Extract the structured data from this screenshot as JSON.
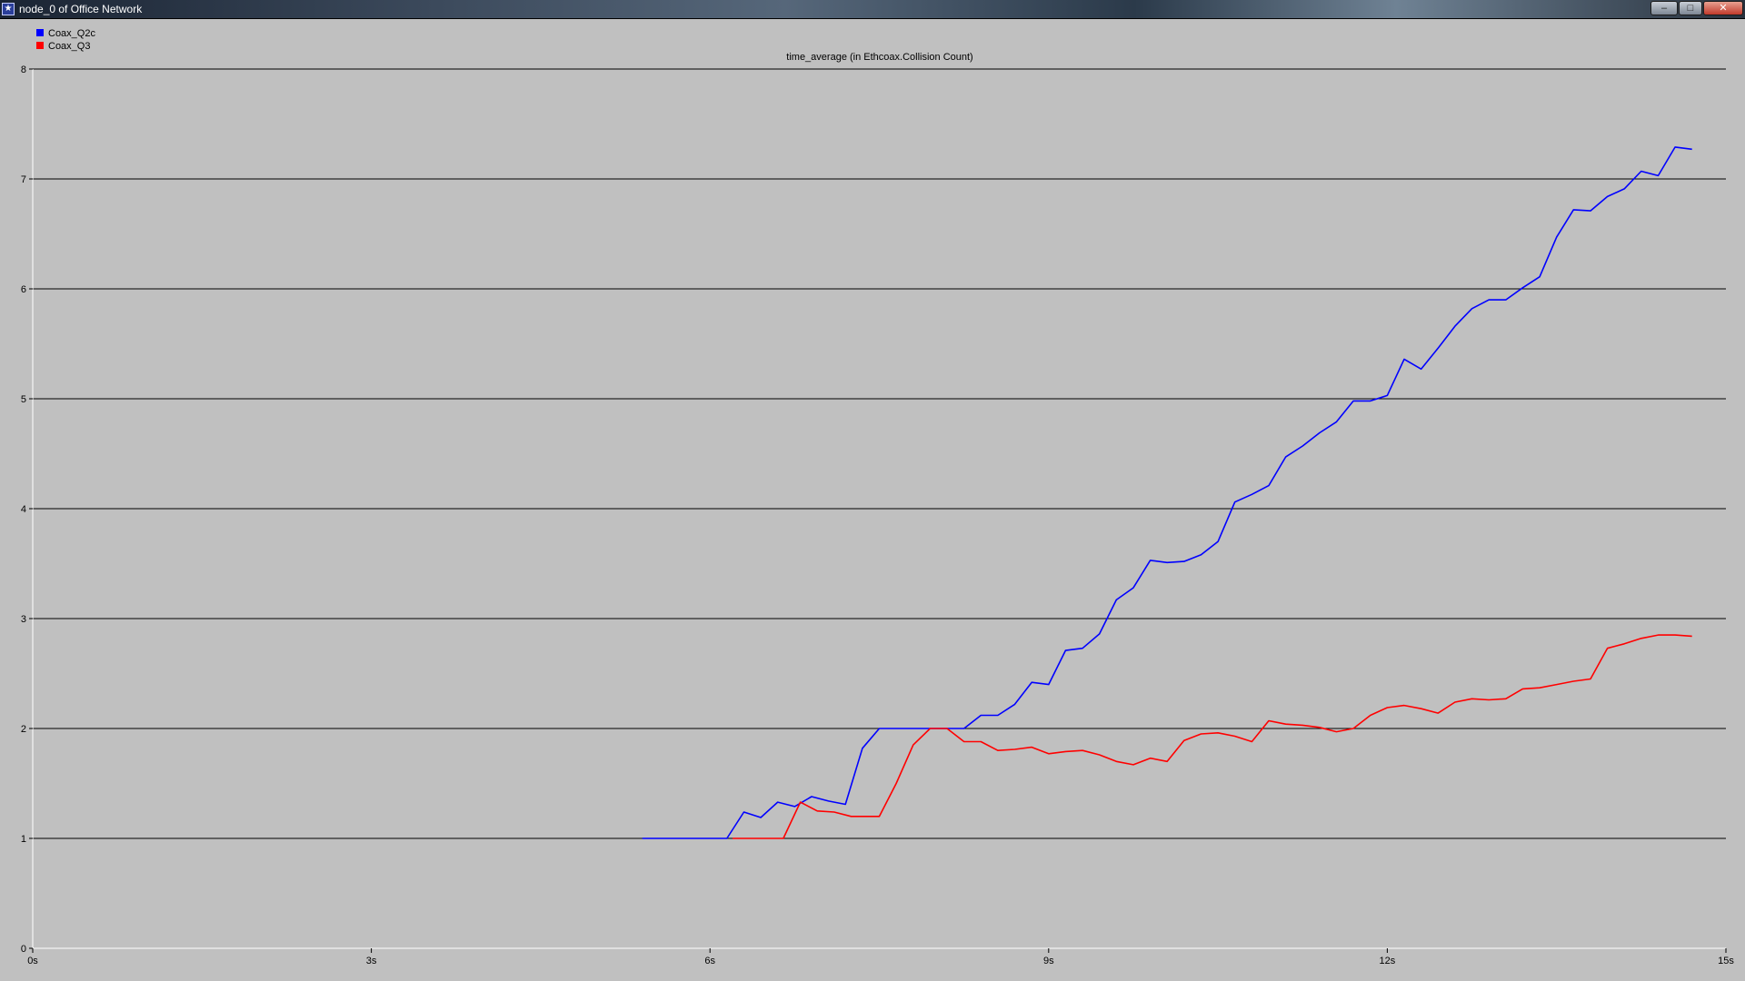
{
  "window": {
    "title": "node_0 of Office Network",
    "app_icon": "star-icon",
    "buttons": {
      "minimize": "–",
      "maximize": "□",
      "close": "✕"
    }
  },
  "legend": [
    {
      "label": "Coax_Q2c",
      "color": "#0000ff"
    },
    {
      "label": "Coax_Q3",
      "color": "#ff0000"
    }
  ],
  "chart_data": {
    "type": "line",
    "title": "time_average (in Ethcoax.Collision Count)",
    "xlabel": "",
    "ylabel": "",
    "xlim": [
      0,
      15
    ],
    "ylim": [
      0,
      8
    ],
    "x_ticks": [
      {
        "value": 0,
        "label": "0s"
      },
      {
        "value": 3,
        "label": "3s"
      },
      {
        "value": 6,
        "label": "6s"
      },
      {
        "value": 9,
        "label": "9s"
      },
      {
        "value": 12,
        "label": "12s"
      },
      {
        "value": 15,
        "label": "15s"
      }
    ],
    "y_ticks": [
      {
        "value": 0,
        "label": "0"
      },
      {
        "value": 1,
        "label": "1"
      },
      {
        "value": 2,
        "label": "2"
      },
      {
        "value": 3,
        "label": "3"
      },
      {
        "value": 4,
        "label": "4"
      },
      {
        "value": 5,
        "label": "5"
      },
      {
        "value": 6,
        "label": "6"
      },
      {
        "value": 7,
        "label": "7"
      },
      {
        "value": 8,
        "label": "8"
      }
    ],
    "grid": true,
    "legend_position": "top-left",
    "background": "#c0c0c0",
    "series": [
      {
        "name": "Coax_Q2c",
        "color": "#0000ff",
        "points": [
          [
            5.4,
            1.0
          ],
          [
            6.15,
            1.0
          ],
          [
            6.3,
            1.24
          ],
          [
            6.45,
            1.19
          ],
          [
            6.6,
            1.33
          ],
          [
            6.75,
            1.29
          ],
          [
            6.9,
            1.38
          ],
          [
            7.05,
            1.34
          ],
          [
            7.2,
            1.31
          ],
          [
            7.35,
            1.82
          ],
          [
            7.5,
            2.0
          ],
          [
            8.1,
            2.0
          ],
          [
            8.25,
            2.0
          ],
          [
            8.4,
            2.12
          ],
          [
            8.55,
            2.12
          ],
          [
            8.7,
            2.22
          ],
          [
            8.85,
            2.42
          ],
          [
            9.0,
            2.4
          ],
          [
            9.15,
            2.71
          ],
          [
            9.3,
            2.73
          ],
          [
            9.45,
            2.86
          ],
          [
            9.6,
            3.17
          ],
          [
            9.75,
            3.28
          ],
          [
            9.9,
            3.53
          ],
          [
            10.05,
            3.51
          ],
          [
            10.2,
            3.52
          ],
          [
            10.35,
            3.58
          ],
          [
            10.5,
            3.7
          ],
          [
            10.65,
            4.06
          ],
          [
            10.8,
            4.13
          ],
          [
            10.95,
            4.21
          ],
          [
            11.1,
            4.47
          ],
          [
            11.25,
            4.57
          ],
          [
            11.4,
            4.69
          ],
          [
            11.55,
            4.79
          ],
          [
            11.7,
            4.98
          ],
          [
            11.85,
            4.98
          ],
          [
            12.0,
            5.03
          ],
          [
            12.15,
            5.36
          ],
          [
            12.3,
            5.27
          ],
          [
            12.45,
            5.46
          ],
          [
            12.6,
            5.66
          ],
          [
            12.75,
            5.82
          ],
          [
            12.9,
            5.9
          ],
          [
            13.05,
            5.9
          ],
          [
            13.2,
            6.01
          ],
          [
            13.35,
            6.11
          ],
          [
            13.5,
            6.47
          ],
          [
            13.65,
            6.72
          ],
          [
            13.8,
            6.71
          ],
          [
            13.95,
            6.84
          ],
          [
            14.1,
            6.91
          ],
          [
            14.25,
            7.07
          ],
          [
            14.4,
            7.03
          ],
          [
            14.55,
            7.29
          ],
          [
            14.7,
            7.27
          ]
        ]
      },
      {
        "name": "Coax_Q3",
        "color": "#ff0000",
        "points": [
          [
            6.2,
            1.0
          ],
          [
            6.65,
            1.0
          ],
          [
            6.8,
            1.33
          ],
          [
            6.95,
            1.25
          ],
          [
            7.1,
            1.24
          ],
          [
            7.25,
            1.2
          ],
          [
            7.5,
            1.2
          ],
          [
            7.65,
            1.5
          ],
          [
            7.8,
            1.85
          ],
          [
            7.95,
            2.0
          ],
          [
            8.1,
            2.0
          ],
          [
            8.25,
            1.88
          ],
          [
            8.4,
            1.88
          ],
          [
            8.55,
            1.8
          ],
          [
            8.7,
            1.81
          ],
          [
            8.85,
            1.83
          ],
          [
            9.0,
            1.77
          ],
          [
            9.15,
            1.79
          ],
          [
            9.3,
            1.8
          ],
          [
            9.45,
            1.76
          ],
          [
            9.6,
            1.7
          ],
          [
            9.75,
            1.67
          ],
          [
            9.9,
            1.73
          ],
          [
            10.05,
            1.7
          ],
          [
            10.2,
            1.89
          ],
          [
            10.35,
            1.95
          ],
          [
            10.5,
            1.96
          ],
          [
            10.65,
            1.93
          ],
          [
            10.8,
            1.88
          ],
          [
            10.95,
            2.07
          ],
          [
            11.1,
            2.04
          ],
          [
            11.25,
            2.03
          ],
          [
            11.4,
            2.01
          ],
          [
            11.55,
            1.97
          ],
          [
            11.7,
            2.0
          ],
          [
            11.85,
            2.12
          ],
          [
            12.0,
            2.19
          ],
          [
            12.15,
            2.21
          ],
          [
            12.3,
            2.18
          ],
          [
            12.45,
            2.14
          ],
          [
            12.6,
            2.24
          ],
          [
            12.75,
            2.27
          ],
          [
            12.9,
            2.26
          ],
          [
            13.05,
            2.27
          ],
          [
            13.2,
            2.36
          ],
          [
            13.35,
            2.37
          ],
          [
            13.5,
            2.4
          ],
          [
            13.65,
            2.43
          ],
          [
            13.8,
            2.45
          ],
          [
            13.95,
            2.73
          ],
          [
            14.1,
            2.77
          ],
          [
            14.25,
            2.82
          ],
          [
            14.4,
            2.85
          ],
          [
            14.55,
            2.85
          ],
          [
            14.7,
            2.84
          ]
        ]
      }
    ]
  }
}
